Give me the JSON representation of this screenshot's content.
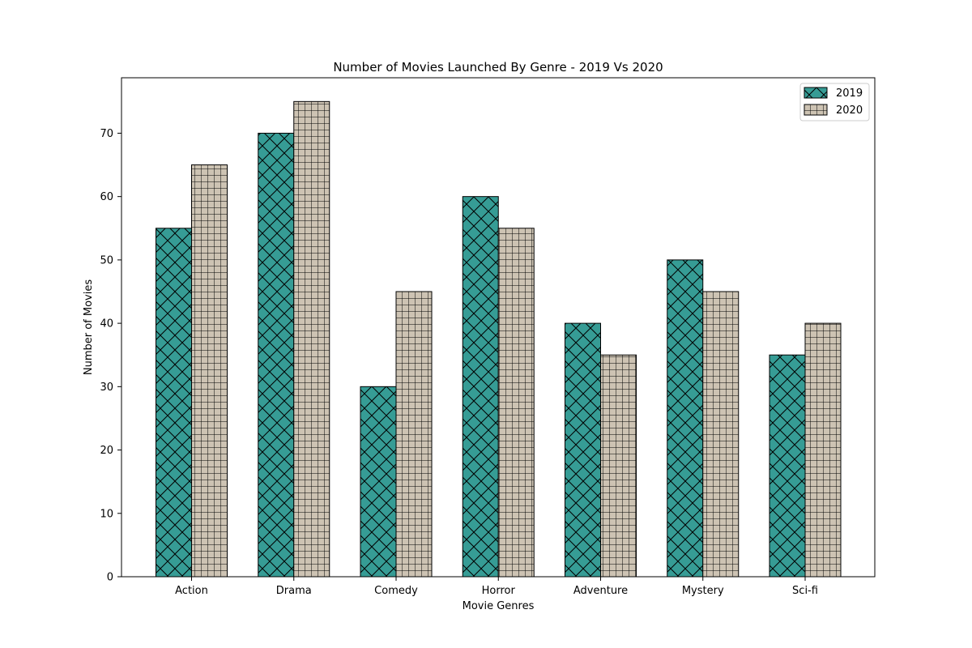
{
  "chart_data": {
    "type": "bar",
    "title": "Number of Movies Launched By Genre - 2019 Vs 2020",
    "xlabel": "Movie Genres",
    "ylabel": "Number of Movies",
    "categories": [
      "Action",
      "Drama",
      "Comedy",
      "Horror",
      "Adventure",
      "Mystery",
      "Sci-fi"
    ],
    "series": [
      {
        "name": "2019",
        "values": [
          55,
          70,
          30,
          60,
          40,
          50,
          35
        ],
        "color": "#369c95",
        "hatch": "cross-diagonal"
      },
      {
        "name": "2020",
        "values": [
          65,
          75,
          45,
          55,
          35,
          45,
          40
        ],
        "color": "#cdc3b3",
        "hatch": "grid"
      }
    ],
    "ylim": [
      0,
      78.75
    ],
    "yticks": [
      0,
      10,
      20,
      30,
      40,
      50,
      60,
      70
    ],
    "grid": false,
    "legend_position": "top-right"
  }
}
